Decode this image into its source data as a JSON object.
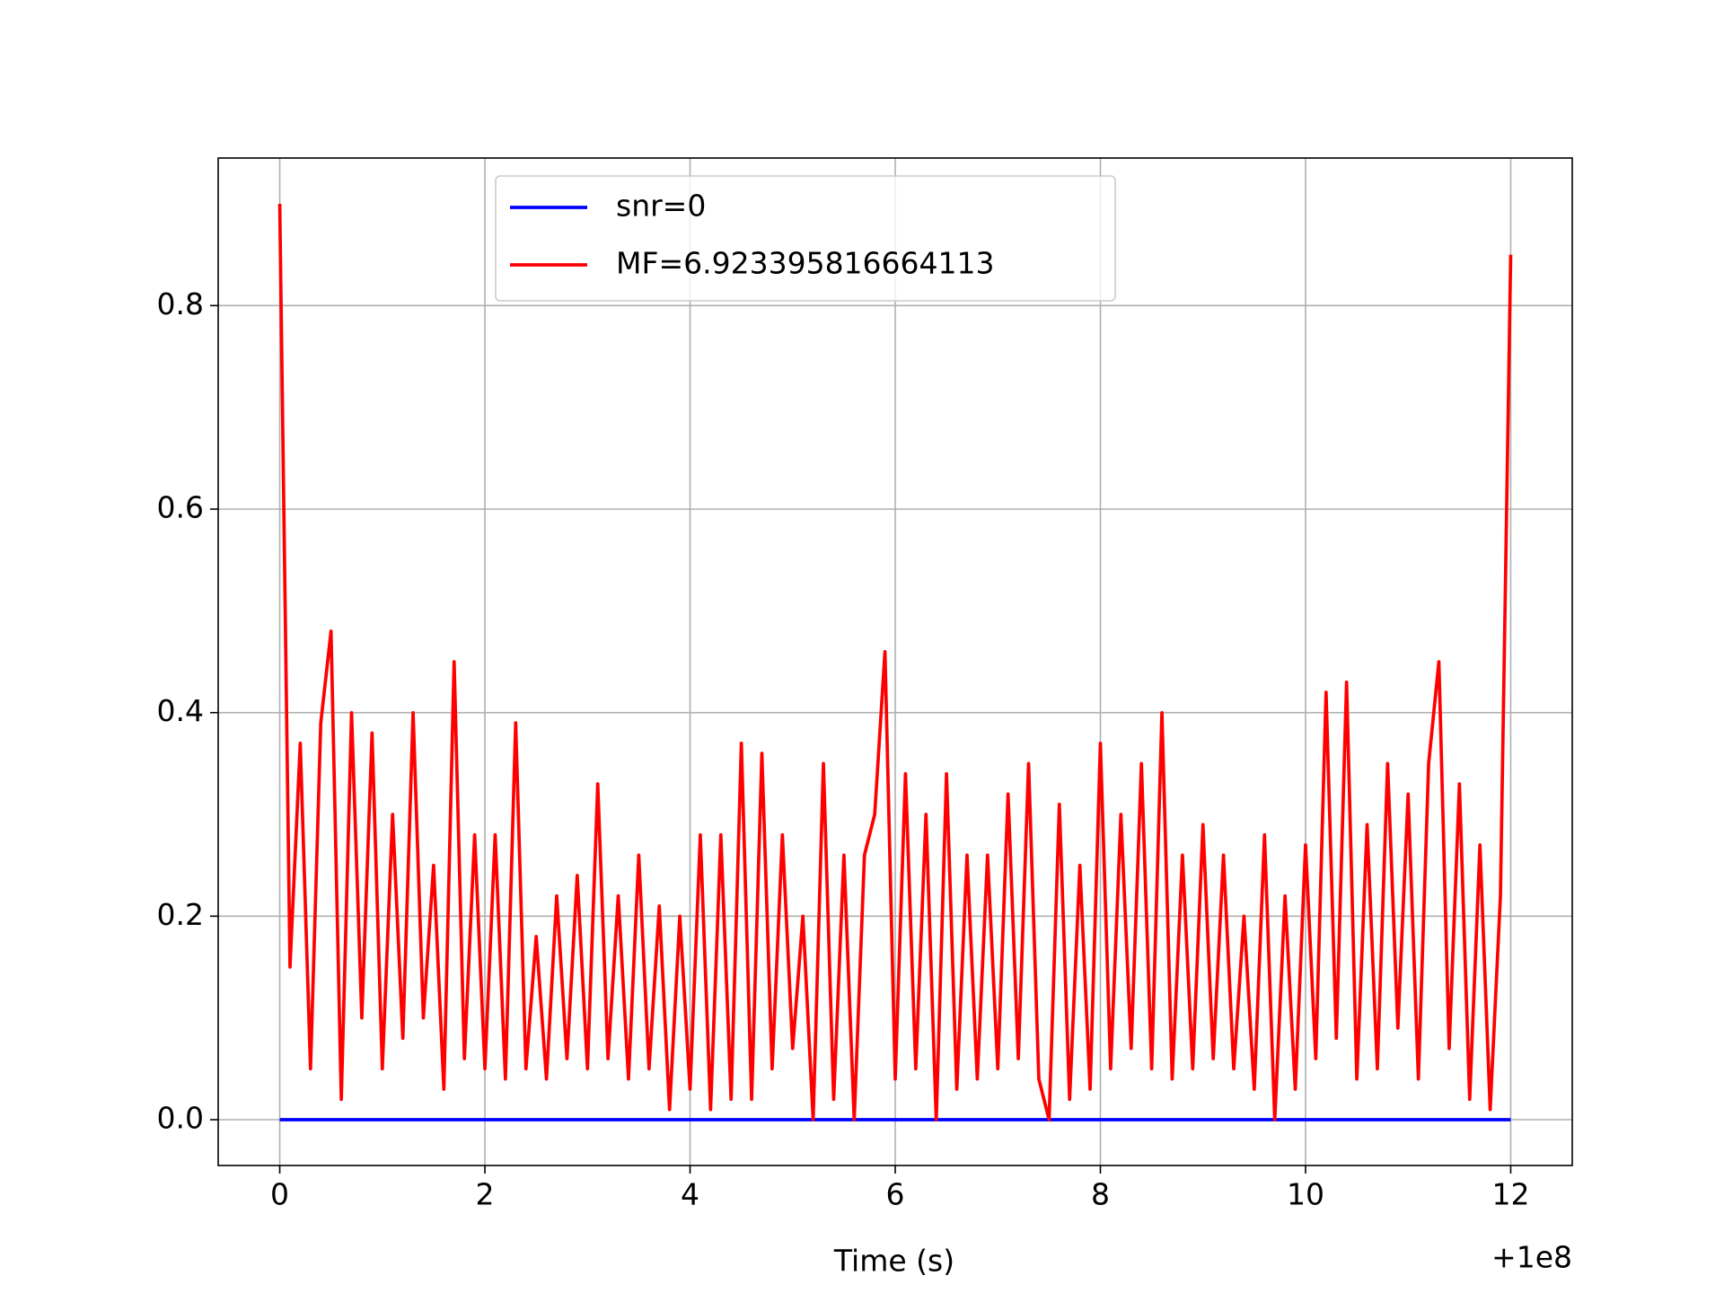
{
  "chart_data": {
    "type": "line",
    "x_label": "Time (s)",
    "x_offset_label": "+1e8",
    "x": [
      0,
      0.1,
      0.2,
      0.3,
      0.4,
      0.5,
      0.6,
      0.7,
      0.8,
      0.9,
      1,
      1.1,
      1.2,
      1.3,
      1.4,
      1.5,
      1.6,
      1.7,
      1.8,
      1.9,
      2,
      2.1,
      2.2,
      2.3,
      2.4,
      2.5,
      2.6,
      2.7,
      2.8,
      2.9,
      3,
      3.1,
      3.2,
      3.3,
      3.4,
      3.5,
      3.6,
      3.7,
      3.8,
      3.9,
      4,
      4.1,
      4.2,
      4.3,
      4.4,
      4.5,
      4.6,
      4.7,
      4.8,
      4.9,
      5,
      5.1,
      5.2,
      5.3,
      5.4,
      5.5,
      5.6,
      5.7,
      5.8,
      5.9,
      6,
      6.1,
      6.2,
      6.3,
      6.4,
      6.5,
      6.6,
      6.7,
      6.8,
      6.9,
      7,
      7.1,
      7.2,
      7.3,
      7.4,
      7.5,
      7.6,
      7.7,
      7.8,
      7.9,
      8,
      8.1,
      8.2,
      8.3,
      8.4,
      8.5,
      8.6,
      8.7,
      8.8,
      8.9,
      9,
      9.1,
      9.2,
      9.3,
      9.4,
      9.5,
      9.6,
      9.7,
      9.8,
      9.9,
      10,
      10.1,
      10.2,
      10.3,
      10.4,
      10.5,
      10.6,
      10.7,
      10.8,
      10.9,
      11,
      11.1,
      11.2,
      11.3,
      11.4,
      11.5,
      11.6,
      11.7,
      11.8,
      11.9,
      12
    ],
    "series": [
      {
        "name": "snr=0",
        "color": "#0000ff",
        "values": [
          0,
          0,
          0,
          0,
          0,
          0,
          0,
          0,
          0,
          0,
          0,
          0,
          0,
          0,
          0,
          0,
          0,
          0,
          0,
          0,
          0,
          0,
          0,
          0,
          0,
          0,
          0,
          0,
          0,
          0,
          0,
          0,
          0,
          0,
          0,
          0,
          0,
          0,
          0,
          0,
          0,
          0,
          0,
          0,
          0,
          0,
          0,
          0,
          0,
          0,
          0,
          0,
          0,
          0,
          0,
          0,
          0,
          0,
          0,
          0,
          0,
          0,
          0,
          0,
          0,
          0,
          0,
          0,
          0,
          0,
          0,
          0,
          0,
          0,
          0,
          0,
          0,
          0,
          0,
          0,
          0,
          0,
          0,
          0,
          0,
          0,
          0,
          0,
          0,
          0,
          0,
          0,
          0,
          0,
          0,
          0,
          0,
          0,
          0,
          0,
          0,
          0,
          0,
          0,
          0,
          0,
          0,
          0,
          0,
          0,
          0,
          0,
          0,
          0,
          0,
          0,
          0,
          0,
          0,
          0,
          0
        ]
      },
      {
        "name": "MF=6.923395816664113",
        "color": "#ff0000",
        "values": [
          0.9,
          0.15,
          0.37,
          0.05,
          0.39,
          0.48,
          0.02,
          0.4,
          0.1,
          0.38,
          0.05,
          0.3,
          0.08,
          0.4,
          0.1,
          0.25,
          0.03,
          0.45,
          0.06,
          0.28,
          0.05,
          0.28,
          0.04,
          0.39,
          0.05,
          0.18,
          0.04,
          0.22,
          0.06,
          0.24,
          0.05,
          0.33,
          0.06,
          0.22,
          0.04,
          0.26,
          0.05,
          0.21,
          0.01,
          0.2,
          0.03,
          0.28,
          0.01,
          0.28,
          0.02,
          0.37,
          0.02,
          0.36,
          0.05,
          0.28,
          0.07,
          0.2,
          0,
          0.35,
          0.02,
          0.26,
          0,
          0.26,
          0.3,
          0.46,
          0.04,
          0.34,
          0.05,
          0.3,
          0,
          0.34,
          0.03,
          0.26,
          0.04,
          0.26,
          0.05,
          0.32,
          0.06,
          0.35,
          0.04,
          0,
          0.31,
          0.02,
          0.25,
          0.03,
          0.37,
          0.05,
          0.3,
          0.07,
          0.35,
          0.05,
          0.4,
          0.04,
          0.26,
          0.05,
          0.29,
          0.06,
          0.26,
          0.05,
          0.2,
          0.03,
          0.28,
          0,
          0.22,
          0.03,
          0.27,
          0.06,
          0.42,
          0.08,
          0.43,
          0.04,
          0.29,
          0.05,
          0.35,
          0.09,
          0.32,
          0.04,
          0.35,
          0.45,
          0.07,
          0.33,
          0.02,
          0.27,
          0.01,
          0.22,
          0.85
        ]
      }
    ],
    "xlim": [
      -0.6,
      12.6
    ],
    "xticks": [
      0,
      2,
      4,
      6,
      8,
      10,
      12
    ],
    "ylim": [
      -0.045,
      0.945
    ],
    "yticks": [
      {
        "value": 0,
        "label": "0.0"
      },
      {
        "value": 0.2,
        "label": "0.2"
      },
      {
        "value": 0.4,
        "label": "0.4"
      },
      {
        "value": 0.6,
        "label": "0.6"
      },
      {
        "value": 0.8,
        "label": "0.8"
      }
    ],
    "grid": true,
    "legend": "upper center"
  }
}
